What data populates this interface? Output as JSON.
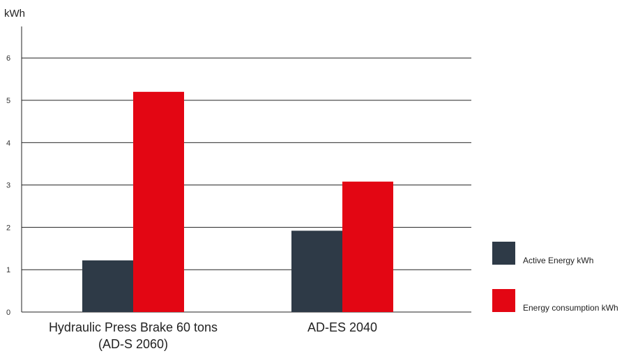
{
  "chart_data": {
    "type": "bar",
    "title": "",
    "xlabel": "",
    "ylabel": "kWh",
    "ylim": [
      0,
      6.5
    ],
    "yticks": [
      0,
      1,
      2,
      3,
      4,
      5,
      6
    ],
    "grid": true,
    "legend_position": "right",
    "categories": [
      [
        "Hydraulic Press Brake 60 tons",
        "(AD-S 2060)"
      ],
      [
        "AD-ES 2040"
      ]
    ],
    "series": [
      {
        "name": "Active Energy kWh",
        "color": "#2e3a47",
        "values": [
          1.22,
          1.92
        ]
      },
      {
        "name": "Energy consumption kWh",
        "color": "#e30613",
        "values": [
          5.2,
          3.08
        ]
      }
    ]
  },
  "colors": {
    "axis": "#222222",
    "gridline": "#222222",
    "tick_text": "#333333",
    "category_text": "#222222"
  }
}
